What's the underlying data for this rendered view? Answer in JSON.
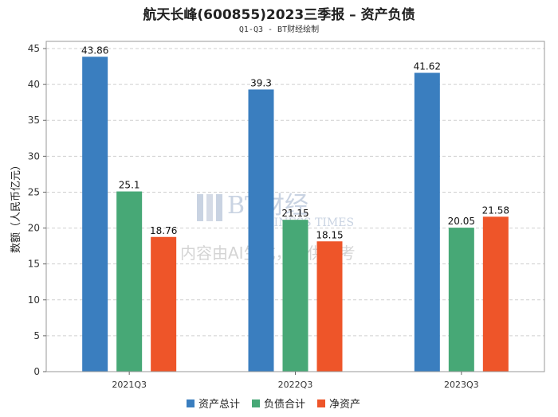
{
  "title": "航天长峰(600855)2023三季报 – 资产负债",
  "subtitle": "Q1-Q3 - BT财经绘制",
  "watermark": {
    "brand": "BT财经",
    "brand_en": "BUSINESS TIMES",
    "notice": "内容由AI生成，仅供参考"
  },
  "chart_data": {
    "type": "bar",
    "title": "航天长峰(600855)2023三季报 – 资产负债",
    "subtitle": "Q1-Q3 - BT财经绘制",
    "xlabel": "",
    "ylabel": "数额（人民币亿元）",
    "ylim": [
      0,
      46
    ],
    "yticks": [
      0,
      5,
      10,
      15,
      20,
      25,
      30,
      35,
      40,
      45
    ],
    "grid": true,
    "legend_position": "bottom",
    "categories": [
      "2021Q3",
      "2022Q3",
      "2023Q3"
    ],
    "series": [
      {
        "name": "资产总计",
        "color": "#3a7ebf",
        "values": [
          43.86,
          39.3,
          41.62
        ],
        "labels": [
          "43.86",
          "39.3",
          "41.62"
        ]
      },
      {
        "name": "负债合计",
        "color": "#47a876",
        "values": [
          25.1,
          21.15,
          20.05
        ],
        "labels": [
          "25.1",
          "21.15",
          "20.05"
        ]
      },
      {
        "name": "净资产",
        "color": "#ee5529",
        "values": [
          18.76,
          18.15,
          21.58
        ],
        "labels": [
          "18.76",
          "18.15",
          "21.58"
        ]
      }
    ]
  }
}
